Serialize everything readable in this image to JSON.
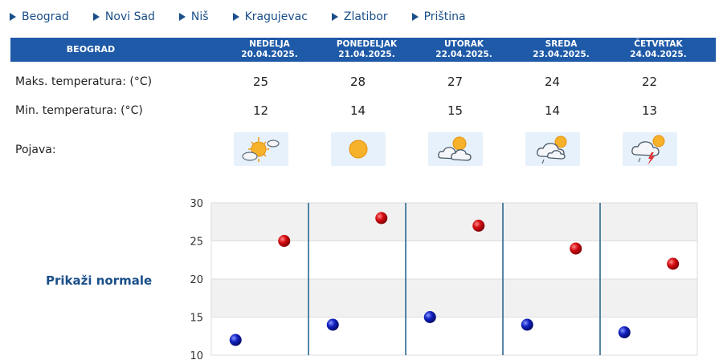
{
  "nav": {
    "cities": [
      "Beograd",
      "Novi Sad",
      "Niš",
      "Kragujevac",
      "Zlatibor",
      "Priština"
    ]
  },
  "table": {
    "city": "BEOGRAD",
    "days": [
      {
        "name": "NEDELJA",
        "date": "20.04.2025.",
        "max": "25",
        "min": "12",
        "icon": "sun-cloud-icon"
      },
      {
        "name": "PONEDELJAK",
        "date": "21.04.2025.",
        "max": "28",
        "min": "14",
        "icon": "sun-icon"
      },
      {
        "name": "UTORAK",
        "date": "22.04.2025.",
        "max": "27",
        "min": "15",
        "icon": "cloud-sun-icon"
      },
      {
        "name": "SREDA",
        "date": "23.04.2025.",
        "max": "24",
        "min": "14",
        "icon": "cloud-rain-sun-icon"
      },
      {
        "name": "ČETVRTAK",
        "date": "24.04.2025.",
        "max": "22",
        "min": "13",
        "icon": "thunderstorm-icon"
      }
    ],
    "labels": {
      "max": "Maks. temperatura: (°C)",
      "min": "Min. temperatura: (°C)",
      "phenomenon": "Pojava:"
    }
  },
  "normals_link": "Prikaži normale",
  "colors": {
    "header_bg": "#1e5aa8",
    "link": "#1a4f8a",
    "max_point": "#c8000a",
    "min_point": "#0a1eb4"
  },
  "chart_data": {
    "type": "scatter",
    "categories": [
      "NEDELJA",
      "PONEDELJAK",
      "UTORAK",
      "SREDA",
      "ČETVRTAK"
    ],
    "series": [
      {
        "values": [
          25,
          28,
          27,
          24,
          22
        ]
      },
      {
        "values": [
          12,
          14,
          15,
          14,
          13
        ]
      }
    ],
    "yticks": [
      "30",
      "25",
      "20",
      "15",
      "10"
    ],
    "ylim": [
      10,
      30
    ],
    "grid": true
  }
}
